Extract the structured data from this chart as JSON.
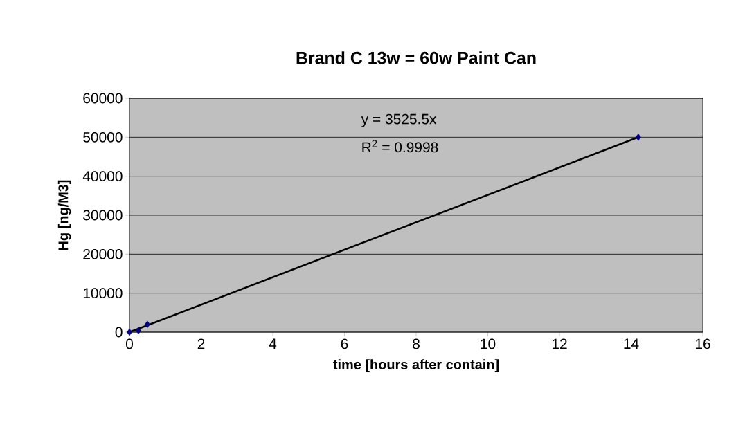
{
  "chart_data": {
    "type": "scatter",
    "title": "Brand C 13w = 60w Paint Can",
    "xlabel": "time [hours after contain]",
    "ylabel": "Hg [ng/M3]",
    "series": [
      {
        "color": "#000080",
        "marker": "diamond",
        "x": [
          0,
          0.25,
          0.5,
          14.2
        ],
        "values": [
          0,
          400,
          2000,
          50000
        ]
      },
      {
        "type": "line",
        "color": "#000000",
        "marker": "none",
        "x": [
          0,
          14.2
        ],
        "values": [
          0,
          50000
        ]
      }
    ],
    "annotations": [
      "y = 3525.5x",
      "R$^{2}$ = 0.9998"
    ],
    "xlim": [
      0,
      16
    ],
    "xticks": [
      0,
      2,
      4,
      6,
      8,
      10,
      12,
      14,
      16
    ],
    "ylim": [
      0,
      60000
    ],
    "yticks": [
      0,
      10000,
      20000,
      30000,
      40000,
      50000,
      60000
    ],
    "grid": "y"
  }
}
